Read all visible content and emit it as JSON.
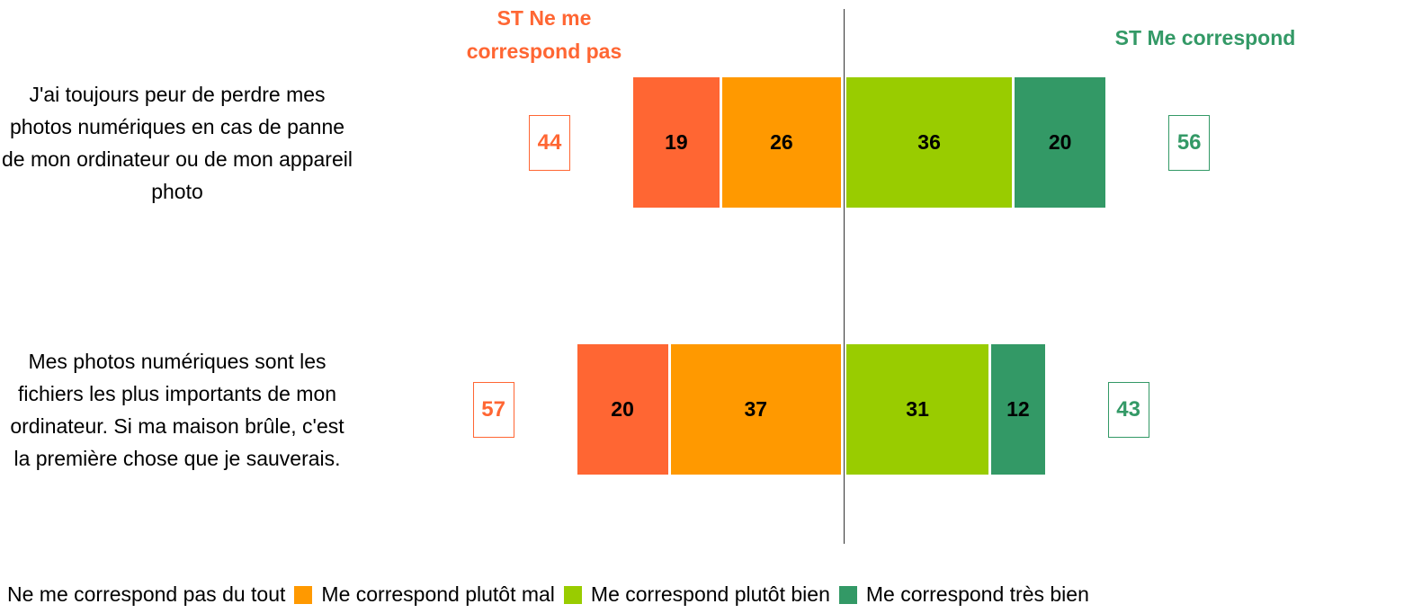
{
  "chart_data": {
    "type": "diverging_bar",
    "negative_header": "ST Ne me correspond pas",
    "positive_header": "ST Me correspond",
    "negative_color": "#ff6633",
    "positive_color": "#339966",
    "categories": [
      "J'ai toujours peur de perdre mes photos numériques en cas de panne de mon ordinateur ou de mon appareil photo",
      "Mes photos numériques sont les fichiers les plus importants de mon ordinateur. Si ma maison brûle, c'est la première chose que je sauverais."
    ],
    "series": [
      {
        "name": "Ne me correspond pas du tout",
        "color": "#ff6633",
        "side": "left",
        "values": [
          19,
          20
        ]
      },
      {
        "name": "Me correspond plutôt mal",
        "color": "#ff9900",
        "side": "left",
        "values": [
          26,
          37
        ]
      },
      {
        "name": "Me correspond plutôt bien",
        "color": "#99cc00",
        "side": "right",
        "values": [
          36,
          31
        ]
      },
      {
        "name": "Me correspond très bien",
        "color": "#339966",
        "side": "right",
        "values": [
          20,
          12
        ]
      }
    ],
    "negative_totals": [
      44,
      57
    ],
    "positive_totals": [
      56,
      43
    ]
  }
}
